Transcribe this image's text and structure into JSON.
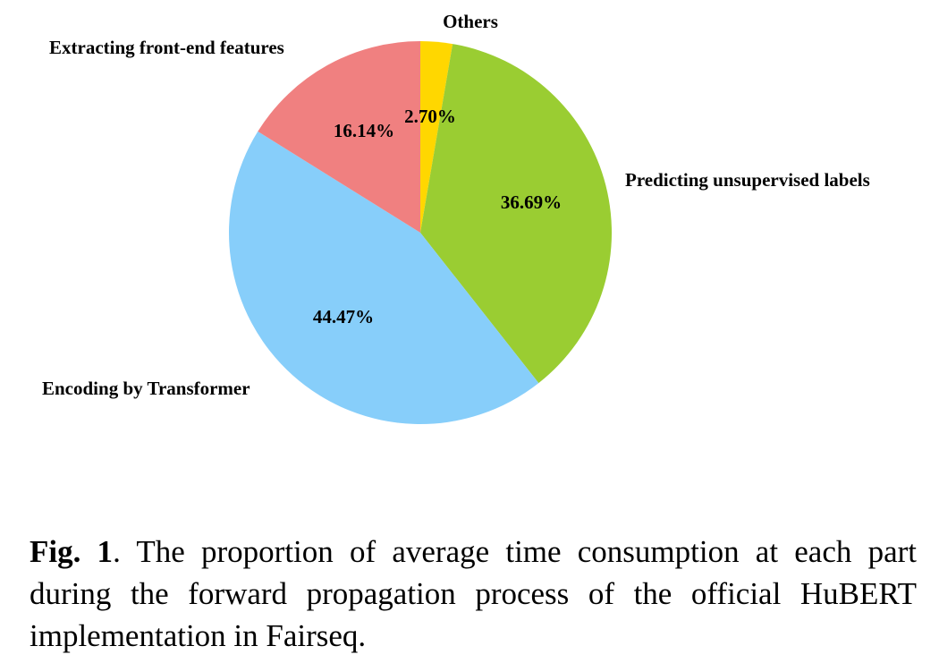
{
  "chart_data": {
    "type": "pie",
    "slices": [
      {
        "label": "Others",
        "value": 2.7,
        "value_label": "2.70%",
        "color": "#FFD700"
      },
      {
        "label": "Predicting unsupervised labels",
        "value": 36.69,
        "value_label": "36.69%",
        "color": "#9ACD32"
      },
      {
        "label": "Encoding by Transformer",
        "value": 44.47,
        "value_label": "44.47%",
        "color": "#87CEFA"
      },
      {
        "label": "Extracting front-end features",
        "value": 16.14,
        "value_label": "16.14%",
        "color": "#F08080"
      }
    ],
    "start_angle": "12 o'clock",
    "direction": "clockwise",
    "legend": "none"
  },
  "caption": {
    "label": "Fig. 1",
    "text": ". The proportion of average time consumption at each part during the forward propagation process of the official Hu­BERT implementation in Fairseq."
  }
}
